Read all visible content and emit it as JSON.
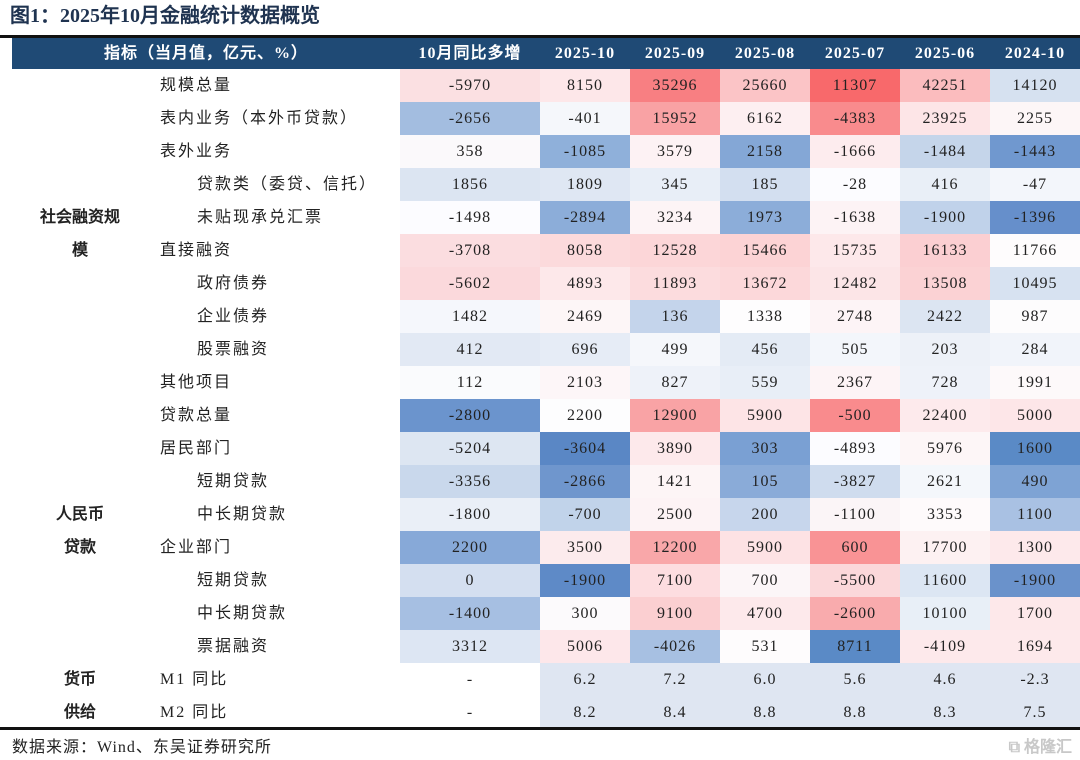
{
  "title": "图1：2025年10月金融统计数据概览",
  "header": [
    "指标（当月值，亿元、%）",
    "10月同比多增",
    "2025-10",
    "2025-09",
    "2025-08",
    "2025-07",
    "2025-06",
    "2024-10"
  ],
  "groups": [
    {
      "label_line1": "社会融资规",
      "label_line2": "模"
    },
    {
      "label_line1": "人民币",
      "label_line2": "贷款"
    },
    {
      "label_line1": "货币",
      "label_line2": "供给"
    }
  ],
  "rows": [
    {
      "label": "规模总量",
      "indent": 1,
      "values": [
        "-5970",
        "8150",
        "35296",
        "25660",
        "11307",
        "42251",
        "14120"
      ],
      "colors": [
        "#fbe0e2",
        "#fde7e9",
        "#f87f82",
        "#fbc4c6",
        "#f8696b",
        "#fbbcbe",
        "#d6e1f0"
      ]
    },
    {
      "label": "表内业务（本外币贷款）",
      "indent": 1,
      "values": [
        "-2656",
        "-401",
        "15952",
        "6162",
        "-4383",
        "23925",
        "2255"
      ],
      "colors": [
        "#a3bde0",
        "#f5f7fb",
        "#f9a2a4",
        "#fdeff1",
        "#f98b8d",
        "#fde5e7",
        "#fdf6f7"
      ]
    },
    {
      "label": "表外业务",
      "indent": 1,
      "values": [
        "358",
        "-1085",
        "3579",
        "2158",
        "-1666",
        "-1484",
        "-1443"
      ],
      "colors": [
        "#fbf9fb",
        "#8fb0da",
        "#fdf2f4",
        "#84a7d6",
        "#fdecee",
        "#c5d5ea",
        "#7098cf"
      ]
    },
    {
      "label": "贷款类（委贷、信托）",
      "indent": 2,
      "values": [
        "1856",
        "1809",
        "345",
        "185",
        "-28",
        "416",
        "-47"
      ],
      "colors": [
        "#dce5f2",
        "#dfe7f3",
        "#e8eef7",
        "#d3dff0",
        "#fcfcff",
        "#e9eff7",
        "#f3f6fb"
      ]
    },
    {
      "label": "未贴现承兑汇票",
      "indent": 2,
      "values": [
        "-1498",
        "-2894",
        "3234",
        "1973",
        "-1638",
        "-1900",
        "-1396"
      ],
      "colors": [
        "#fcfcff",
        "#8cadd9",
        "#fdf4f6",
        "#8cadd9",
        "#fdf3f5",
        "#c0d2ea",
        "#668fcb"
      ]
    },
    {
      "label": "直接融资",
      "indent": 1,
      "values": [
        "-3708",
        "8058",
        "12528",
        "15466",
        "15735",
        "16133",
        "11766"
      ],
      "colors": [
        "#fbdde0",
        "#fcdadc",
        "#fcd6d8",
        "#fcd3d5",
        "#fde8ea",
        "#fbcfd2",
        "#fefcfd"
      ]
    },
    {
      "label": "政府债券",
      "indent": 2,
      "values": [
        "-5602",
        "4893",
        "11893",
        "13672",
        "12482",
        "13508",
        "10495"
      ],
      "colors": [
        "#fbd9dc",
        "#fde8ea",
        "#fcdcde",
        "#fcd8da",
        "#fce5e7",
        "#fbd2d4",
        "#d7e2f1"
      ]
    },
    {
      "label": "企业债券",
      "indent": 2,
      "values": [
        "1482",
        "2469",
        "136",
        "1338",
        "2748",
        "2422",
        "987"
      ],
      "colors": [
        "#f5f7fc",
        "#fdf6f7",
        "#c4d4eb",
        "#fefdfe",
        "#fdf4f6",
        "#dce5f2",
        "#fdfcfd"
      ]
    },
    {
      "label": "股票融资",
      "indent": 2,
      "values": [
        "412",
        "696",
        "499",
        "456",
        "505",
        "203",
        "284"
      ],
      "colors": [
        "#e2e9f4",
        "#e6ecf6",
        "#f5f7fb",
        "#e4ebf5",
        "#f3f6fb",
        "#edf1f8",
        "#f1f4fa"
      ]
    },
    {
      "label": "其他项目",
      "indent": 1,
      "values": [
        "112",
        "2103",
        "827",
        "559",
        "2367",
        "728",
        "1991"
      ],
      "colors": [
        "#fafbfd",
        "#fdf6f8",
        "#eef2f9",
        "#e8eef7",
        "#fdf4f6",
        "#eef2f9",
        "#fdf9fa"
      ]
    },
    {
      "label": "贷款总量",
      "indent": 1,
      "values": [
        "-2800",
        "2200",
        "12900",
        "5900",
        "-500",
        "22400",
        "5000"
      ],
      "colors": [
        "#6b94cd",
        "#fdfdfe",
        "#f9a3a5",
        "#fde4e6",
        "#f98b8d",
        "#fdeaec",
        "#fde6e8"
      ]
    },
    {
      "label": "居民部门",
      "indent": 1,
      "values": [
        "-5204",
        "-3604",
        "3890",
        "303",
        "-4893",
        "5976",
        "1600"
      ],
      "colors": [
        "#dde6f2",
        "#5a87c5",
        "#fde9eb",
        "#7aa0d3",
        "#fcfcff",
        "#fdf6f7",
        "#5a8ac6"
      ]
    },
    {
      "label": "短期贷款",
      "indent": 2,
      "values": [
        "-3356",
        "-2866",
        "1421",
        "105",
        "-3827",
        "2621",
        "490"
      ],
      "colors": [
        "#c9d8ec",
        "#6f96cd",
        "#fdf5f6",
        "#8aabd8",
        "#cfdcee",
        "#f4f7fb",
        "#7ea3d4"
      ]
    },
    {
      "label": "中长期贷款",
      "indent": 2,
      "values": [
        "-1800",
        "-700",
        "2500",
        "200",
        "-1100",
        "3353",
        "1100"
      ],
      "colors": [
        "#eaeff7",
        "#c1d3ea",
        "#fdf3f5",
        "#c7d6ec",
        "#fbf5f7",
        "#fefafb",
        "#a9c1e3"
      ]
    },
    {
      "label": "企业部门",
      "indent": 1,
      "values": [
        "2200",
        "3500",
        "12200",
        "5900",
        "600",
        "17700",
        "1300"
      ],
      "colors": [
        "#87a9d8",
        "#fcebed",
        "#f9a7a9",
        "#fde2e4",
        "#f99395",
        "#fdf1f2",
        "#fde9eb"
      ]
    },
    {
      "label": "短期贷款",
      "indent": 2,
      "values": [
        "0",
        "-1900",
        "7100",
        "700",
        "-5500",
        "11600",
        "-1900"
      ],
      "colors": [
        "#d4dff0",
        "#5e8ac7",
        "#fddde0",
        "#fcf6f8",
        "#fbd8da",
        "#dce6f3",
        "#6a92cb"
      ]
    },
    {
      "label": "中长期贷款",
      "indent": 2,
      "values": [
        "-1400",
        "300",
        "9100",
        "4700",
        "-2600",
        "10100",
        "1700"
      ],
      "colors": [
        "#a6bfe2",
        "#fcfafc",
        "#fbcfd1",
        "#fde9eb",
        "#f9abad",
        "#e8eff7",
        "#fde8ea"
      ]
    },
    {
      "label": "票据融资",
      "indent": 2,
      "values": [
        "3312",
        "5006",
        "-4026",
        "531",
        "8711",
        "-4109",
        "1694"
      ],
      "colors": [
        "#dde6f3",
        "#fde7ea",
        "#a7c0e2",
        "#fefcfd",
        "#5a8ac6",
        "#fde9eb",
        "#fde9eb"
      ]
    },
    {
      "label": "M1 同比",
      "indent": 1,
      "values": [
        "-",
        "6.2",
        "7.2",
        "6.0",
        "5.6",
        "4.6",
        "-2.3"
      ],
      "colors": [
        "#ffffff",
        "#dfe6f2",
        "#dfe6f2",
        "#dfe6f2",
        "#dfe6f2",
        "#dfe6f2",
        "#dfe6f2"
      ]
    },
    {
      "label": "M2 同比",
      "indent": 1,
      "values": [
        "-",
        "8.2",
        "8.4",
        "8.8",
        "8.8",
        "8.3",
        "7.5"
      ],
      "colors": [
        "#ffffff",
        "#dfe6f2",
        "#dfe6f2",
        "#dfe6f2",
        "#dfe6f2",
        "#dfe6f2",
        "#dfe6f2"
      ]
    }
  ],
  "source": "数据来源：Wind、东吴证券研究所",
  "watermark": "格隆汇",
  "colors": {
    "header_bg": "#1f4a75",
    "title": "#1f3350",
    "high": "#f8696b",
    "low": "#5a8ac6"
  }
}
